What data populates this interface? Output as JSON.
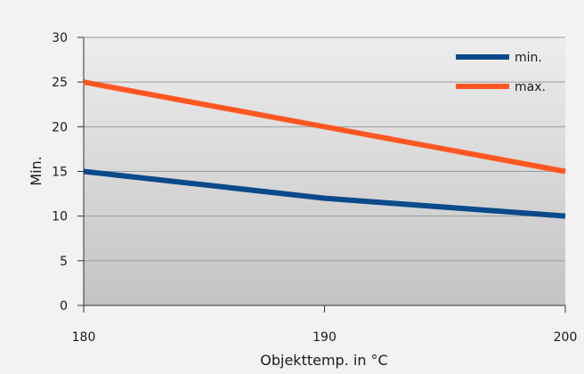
{
  "chart_data": {
    "type": "line",
    "x": [
      180,
      190,
      200
    ],
    "xticks": [
      "180",
      "190",
      "200"
    ],
    "xlabel": "Objekttemp. in °C",
    "ylabel": "Min.",
    "ylim": [
      0,
      30
    ],
    "yticks": [
      0,
      5,
      10,
      15,
      20,
      25,
      30
    ],
    "grid": true,
    "legend_position": "top-right",
    "series": [
      {
        "name": "min.",
        "values": [
          15,
          12,
          10
        ],
        "color": "#0a4a8a"
      },
      {
        "name": "max.",
        "values": [
          25,
          20,
          15
        ],
        "color": "#ff5722"
      }
    ]
  },
  "colors": {
    "page_background": "#f2f2f2",
    "plot_gradient_top": "#ededed",
    "plot_gradient_bottom": "#c3c3c3",
    "grid": "#9c9c9c"
  }
}
